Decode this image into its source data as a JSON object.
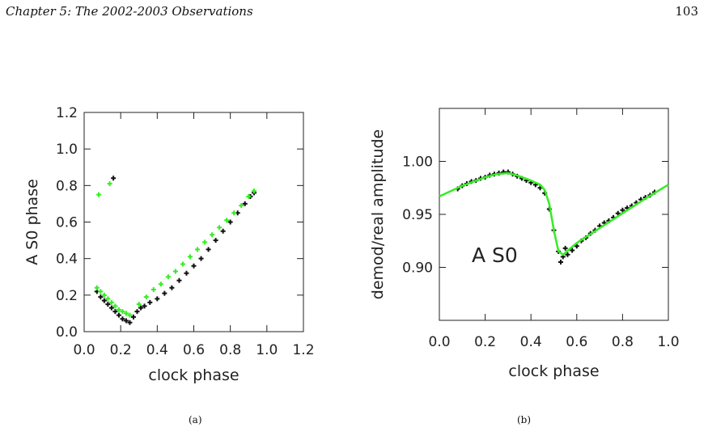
{
  "page": {
    "running_header": "Chapter 5:  The 2002-2003 Observations",
    "page_number": "103"
  },
  "colors": {
    "data": "#111111",
    "model": "#33ee22",
    "axis": "#222222"
  },
  "captions": [
    "(a)",
    "(b)"
  ],
  "chart_data": [
    {
      "type": "scatter",
      "xlabel": "clock phase",
      "ylabel": "A S0 phase",
      "xlim": [
        0.0,
        1.2
      ],
      "ylim": [
        0.0,
        1.2
      ],
      "xticks": [
        "0.0",
        "0.2",
        "0.4",
        "0.6",
        "0.8",
        "1.0",
        "1.2"
      ],
      "yticks": [
        "0.0",
        "0.2",
        "0.4",
        "0.6",
        "0.8",
        "1.0",
        "1.2"
      ],
      "grid": false,
      "series": [
        {
          "color": "#111111",
          "marker": "plus",
          "x": [
            0.07,
            0.09,
            0.11,
            0.13,
            0.15,
            0.17,
            0.19,
            0.21,
            0.23,
            0.25,
            0.27,
            0.29,
            0.31,
            0.33,
            0.36,
            0.4,
            0.44,
            0.48,
            0.52,
            0.56,
            0.6,
            0.64,
            0.68,
            0.72,
            0.76,
            0.8,
            0.84,
            0.88,
            0.91,
            0.93,
            0.16
          ],
          "y": [
            0.22,
            0.19,
            0.17,
            0.15,
            0.13,
            0.11,
            0.09,
            0.07,
            0.06,
            0.05,
            0.08,
            0.11,
            0.13,
            0.14,
            0.16,
            0.18,
            0.21,
            0.24,
            0.28,
            0.32,
            0.36,
            0.4,
            0.45,
            0.5,
            0.55,
            0.6,
            0.65,
            0.7,
            0.74,
            0.76,
            0.84
          ]
        },
        {
          "color": "#33ee22",
          "marker": "plus",
          "x": [
            0.07,
            0.09,
            0.11,
            0.13,
            0.15,
            0.17,
            0.19,
            0.21,
            0.23,
            0.25,
            0.3,
            0.34,
            0.38,
            0.42,
            0.46,
            0.5,
            0.54,
            0.58,
            0.62,
            0.66,
            0.7,
            0.74,
            0.78,
            0.82,
            0.86,
            0.9,
            0.93,
            0.08,
            0.14
          ],
          "y": [
            0.24,
            0.22,
            0.2,
            0.18,
            0.16,
            0.14,
            0.12,
            0.11,
            0.1,
            0.09,
            0.15,
            0.19,
            0.23,
            0.26,
            0.3,
            0.33,
            0.37,
            0.41,
            0.45,
            0.49,
            0.53,
            0.57,
            0.61,
            0.65,
            0.69,
            0.74,
            0.77,
            0.75,
            0.81
          ]
        }
      ]
    },
    {
      "type": "line",
      "xlabel": "clock phase",
      "ylabel": "demod/real amplitude",
      "xlim": [
        0.0,
        1.0
      ],
      "ylim": [
        0.85,
        1.05
      ],
      "xticks": [
        "0.0",
        "0.2",
        "0.4",
        "0.6",
        "0.8",
        "1.0"
      ],
      "yticks": [
        "0.90",
        "0.95",
        "1.00"
      ],
      "grid": false,
      "annotation": "A S0",
      "series": [
        {
          "color": "#111111",
          "marker": "plus",
          "x": [
            0.08,
            0.1,
            0.12,
            0.14,
            0.16,
            0.18,
            0.2,
            0.22,
            0.24,
            0.26,
            0.28,
            0.3,
            0.32,
            0.34,
            0.36,
            0.38,
            0.4,
            0.42,
            0.44,
            0.46,
            0.48,
            0.5,
            0.52,
            0.53,
            0.54,
            0.55,
            0.56,
            0.58,
            0.6,
            0.62,
            0.64,
            0.66,
            0.68,
            0.7,
            0.72,
            0.74,
            0.76,
            0.78,
            0.8,
            0.82,
            0.84,
            0.86,
            0.88,
            0.9,
            0.92,
            0.94
          ],
          "y": [
            0.974,
            0.977,
            0.979,
            0.981,
            0.982,
            0.984,
            0.985,
            0.987,
            0.988,
            0.989,
            0.99,
            0.99,
            0.988,
            0.986,
            0.984,
            0.982,
            0.98,
            0.978,
            0.975,
            0.97,
            0.955,
            0.935,
            0.915,
            0.905,
            0.91,
            0.918,
            0.912,
            0.916,
            0.92,
            0.925,
            0.928,
            0.932,
            0.935,
            0.939,
            0.942,
            0.944,
            0.947,
            0.951,
            0.954,
            0.956,
            0.958,
            0.961,
            0.964,
            0.966,
            0.968,
            0.971
          ]
        },
        {
          "color": "#33ee22",
          "style": "line",
          "x": [
            0.0,
            0.05,
            0.1,
            0.15,
            0.2,
            0.25,
            0.3,
            0.35,
            0.4,
            0.44,
            0.46,
            0.48,
            0.5,
            0.52,
            0.54,
            0.6,
            0.7,
            0.8,
            0.9,
            1.0
          ],
          "y": [
            0.967,
            0.972,
            0.977,
            0.981,
            0.985,
            0.988,
            0.989,
            0.986,
            0.982,
            0.978,
            0.973,
            0.96,
            0.935,
            0.915,
            0.912,
            0.923,
            0.937,
            0.951,
            0.965,
            0.978
          ]
        }
      ]
    }
  ]
}
